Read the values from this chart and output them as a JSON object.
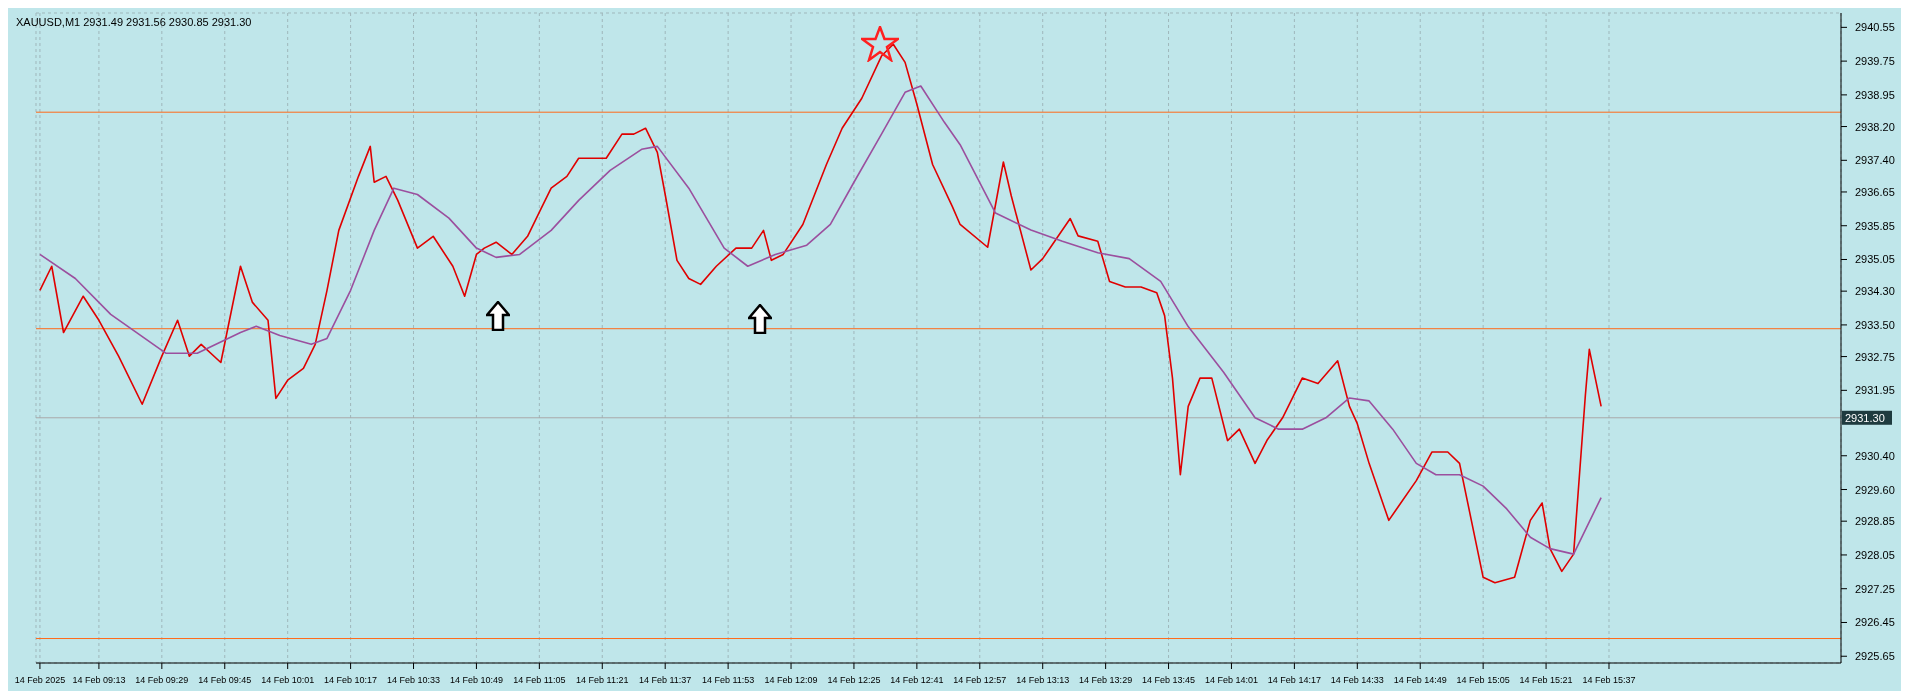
{
  "chart_data": {
    "type": "line",
    "title": "XAUUSD,M1  2931.49 2931.56 2930.85 2931.30",
    "series": [
      {
        "color": "#e00000",
        "x": [
          "2025-02-14T08:58",
          "2025-02-14T09:01",
          "2025-02-14T09:04",
          "2025-02-14T09:09",
          "2025-02-14T09:13",
          "2025-02-14T09:18",
          "2025-02-14T09:24",
          "2025-02-14T09:29",
          "2025-02-14T09:33",
          "2025-02-14T09:36",
          "2025-02-14T09:39",
          "2025-02-14T09:44",
          "2025-02-14T09:49",
          "2025-02-14T09:52",
          "2025-02-14T09:56",
          "2025-02-14T09:58",
          "2025-02-14T10:01",
          "2025-02-14T10:05",
          "2025-02-14T10:08",
          "2025-02-14T10:11",
          "2025-02-14T10:14",
          "2025-02-14T10:19",
          "2025-02-14T10:22",
          "2025-02-14T10:23",
          "2025-02-14T10:26",
          "2025-02-14T10:29",
          "2025-02-14T10:34",
          "2025-02-14T10:38",
          "2025-02-14T10:43",
          "2025-02-14T10:46",
          "2025-02-14T10:49",
          "2025-02-14T10:51",
          "2025-02-14T10:54",
          "2025-02-14T10:58",
          "2025-02-14T11:02",
          "2025-02-14T11:05",
          "2025-02-14T11:08",
          "2025-02-14T11:12",
          "2025-02-14T11:15",
          "2025-02-14T11:22",
          "2025-02-14T11:26",
          "2025-02-14T11:29",
          "2025-02-14T11:32",
          "2025-02-14T11:35",
          "2025-02-14T11:37",
          "2025-02-14T11:40",
          "2025-02-14T11:43",
          "2025-02-14T11:46",
          "2025-02-14T11:50",
          "2025-02-14T11:55",
          "2025-02-14T11:59",
          "2025-02-14T12:02",
          "2025-02-14T12:04",
          "2025-02-14T12:07",
          "2025-02-14T12:12",
          "2025-02-14T12:15",
          "2025-02-14T12:18",
          "2025-02-14T12:22",
          "2025-02-14T12:27",
          "2025-02-14T12:32",
          "2025-02-14T12:35",
          "2025-02-14T12:38",
          "2025-02-14T12:41",
          "2025-02-14T12:45",
          "2025-02-14T12:50",
          "2025-02-14T12:52",
          "2025-02-14T12:59",
          "2025-02-14T13:03",
          "2025-02-14T13:05",
          "2025-02-14T13:10",
          "2025-02-14T13:13",
          "2025-02-14T13:15",
          "2025-02-14T13:20",
          "2025-02-14T13:22",
          "2025-02-14T13:27",
          "2025-02-14T13:30",
          "2025-02-14T13:34",
          "2025-02-14T13:38",
          "2025-02-14T13:42",
          "2025-02-14T13:44",
          "2025-02-14T13:46",
          "2025-02-14T13:48",
          "2025-02-14T13:50",
          "2025-02-14T13:53",
          "2025-02-14T13:56",
          "2025-02-14T14:00",
          "2025-02-14T14:03",
          "2025-02-14T14:07",
          "2025-02-14T14:10",
          "2025-02-14T14:14",
          "2025-02-14T14:19",
          "2025-02-14T14:23",
          "2025-02-14T14:28",
          "2025-02-14T14:31",
          "2025-02-14T14:33",
          "2025-02-14T14:36",
          "2025-02-14T14:41",
          "2025-02-14T14:43",
          "2025-02-14T14:48",
          "2025-02-14T14:52",
          "2025-02-14T14:56",
          "2025-02-14T14:59",
          "2025-02-14T15:02",
          "2025-02-14T15:05",
          "2025-02-14T15:08",
          "2025-02-14T15:13",
          "2025-02-14T15:17",
          "2025-02-14T15:20",
          "2025-02-14T15:22",
          "2025-02-14T15:25",
          "2025-02-14T15:28",
          "2025-02-14T15:31",
          "2025-02-14T15:32",
          "2025-02-14T15:35"
        ],
        "values": [
          2934.32,
          2934.89,
          2933.32,
          2934.18,
          2933.61,
          2932.76,
          2931.62,
          2932.76,
          2933.61,
          2932.76,
          2933.04,
          2932.61,
          2934.89,
          2934.04,
          2933.61,
          2931.76,
          2932.19,
          2932.47,
          2933.04,
          2934.32,
          2935.74,
          2937.02,
          2937.73,
          2936.88,
          2937.02,
          2936.45,
          2935.32,
          2935.6,
          2934.89,
          2934.18,
          2935.17,
          2935.32,
          2935.46,
          2935.17,
          2935.6,
          2936.17,
          2936.74,
          2937.02,
          2937.45,
          2937.45,
          2938.02,
          2938.02,
          2938.16,
          2937.59,
          2936.59,
          2935.03,
          2934.6,
          2934.46,
          2934.89,
          2935.32,
          2935.32,
          2935.74,
          2935.03,
          2935.17,
          2935.88,
          2936.59,
          2937.3,
          2938.16,
          2938.87,
          2939.87,
          2940.15,
          2939.72,
          2938.73,
          2937.3,
          2936.31,
          2935.88,
          2935.34,
          2937.36,
          2936.56,
          2934.8,
          2935.07,
          2935.34,
          2936.02,
          2935.61,
          2935.48,
          2934.53,
          2934.4,
          2934.4,
          2934.26,
          2933.72,
          2932.24,
          2929.95,
          2931.57,
          2932.24,
          2932.24,
          2930.76,
          2931.03,
          2930.22,
          2930.76,
          2931.3,
          2932.24,
          2932.11,
          2932.65,
          2931.57,
          2931.16,
          2930.22,
          2928.87,
          2929.14,
          2929.81,
          2930.49,
          2930.49,
          2930.22,
          2928.87,
          2927.52,
          2927.39,
          2927.52,
          2928.87,
          2929.28,
          2928.2,
          2927.66,
          2928.07,
          2931.84,
          2932.92,
          2931.57
        ]
      },
      {
        "color": "#9b4f9e",
        "x": [
          "2025-02-14T08:58",
          "2025-02-14T09:07",
          "2025-02-14T09:16",
          "2025-02-14T09:30",
          "2025-02-14T09:38",
          "2025-02-14T09:49",
          "2025-02-14T09:53",
          "2025-02-14T09:59",
          "2025-02-14T10:07",
          "2025-02-14T10:11",
          "2025-02-14T10:17",
          "2025-02-14T10:23",
          "2025-02-14T10:28",
          "2025-02-14T10:34",
          "2025-02-14T10:42",
          "2025-02-14T10:49",
          "2025-02-14T10:54",
          "2025-02-14T11:00",
          "2025-02-14T11:08",
          "2025-02-14T11:15",
          "2025-02-14T11:23",
          "2025-02-14T11:31",
          "2025-02-14T11:35",
          "2025-02-14T11:43",
          "2025-02-14T11:52",
          "2025-02-14T11:58",
          "2025-02-14T12:05",
          "2025-02-14T12:13",
          "2025-02-14T12:19",
          "2025-02-14T12:25",
          "2025-02-14T12:32",
          "2025-02-14T12:38",
          "2025-02-14T12:42",
          "2025-02-14T12:48",
          "2025-02-14T12:52",
          "2025-02-14T13:01",
          "2025-02-14T13:10",
          "2025-02-14T13:18",
          "2025-02-14T13:27",
          "2025-02-14T13:35",
          "2025-02-14T13:43",
          "2025-02-14T13:50",
          "2025-02-14T13:59",
          "2025-02-14T14:07",
          "2025-02-14T14:13",
          "2025-02-14T14:19",
          "2025-02-14T14:25",
          "2025-02-14T14:31",
          "2025-02-14T14:36",
          "2025-02-14T14:42",
          "2025-02-14T14:48",
          "2025-02-14T14:53",
          "2025-02-14T14:59",
          "2025-02-14T15:05",
          "2025-02-14T15:11",
          "2025-02-14T15:17",
          "2025-02-14T15:22",
          "2025-02-14T15:28",
          "2025-02-14T15:35"
        ],
        "values": [
          2935.17,
          2934.6,
          2933.75,
          2932.83,
          2932.83,
          2933.32,
          2933.47,
          2933.25,
          2933.04,
          2933.18,
          2934.32,
          2935.74,
          2936.74,
          2936.59,
          2936.03,
          2935.32,
          2935.1,
          2935.17,
          2935.74,
          2936.45,
          2937.16,
          2937.66,
          2937.73,
          2936.74,
          2935.32,
          2934.89,
          2935.17,
          2935.39,
          2935.88,
          2936.88,
          2938.02,
          2939.01,
          2939.16,
          2938.3,
          2937.77,
          2936.15,
          2935.75,
          2935.48,
          2935.21,
          2935.07,
          2934.53,
          2933.46,
          2932.38,
          2931.3,
          2931.03,
          2931.03,
          2931.3,
          2931.77,
          2931.7,
          2931.03,
          2930.22,
          2929.95,
          2929.95,
          2929.68,
          2929.14,
          2928.47,
          2928.2,
          2928.07,
          2929.41
        ]
      }
    ],
    "xlim": [
      "2025-02-14T08:57",
      "2025-02-14T16:36"
    ],
    "xticks": [
      {
        "value": "2025-02-14T08:58",
        "label": "14 Feb 2025"
      },
      {
        "value": "2025-02-14T09:13",
        "label": "14 Feb 09:13"
      },
      {
        "value": "2025-02-14T09:29",
        "label": "14 Feb 09:29"
      },
      {
        "value": "2025-02-14T09:45",
        "label": "14 Feb 09:45"
      },
      {
        "value": "2025-02-14T10:01",
        "label": "14 Feb 10:01"
      },
      {
        "value": "2025-02-14T10:17",
        "label": "14 Feb 10:17"
      },
      {
        "value": "2025-02-14T10:33",
        "label": "14 Feb 10:33"
      },
      {
        "value": "2025-02-14T10:49",
        "label": "14 Feb 10:49"
      },
      {
        "value": "2025-02-14T11:05",
        "label": "14 Feb 11:05"
      },
      {
        "value": "2025-02-14T11:21",
        "label": "14 Feb 11:21"
      },
      {
        "value": "2025-02-14T11:37",
        "label": "14 Feb 11:37"
      },
      {
        "value": "2025-02-14T11:53",
        "label": "14 Feb 11:53"
      },
      {
        "value": "2025-02-14T12:09",
        "label": "14 Feb 12:09"
      },
      {
        "value": "2025-02-14T12:25",
        "label": "14 Feb 12:25"
      },
      {
        "value": "2025-02-14T12:41",
        "label": "14 Feb 12:41"
      },
      {
        "value": "2025-02-14T12:57",
        "label": "14 Feb 12:57"
      },
      {
        "value": "2025-02-14T13:13",
        "label": "14 Feb 13:13"
      },
      {
        "value": "2025-02-14T13:29",
        "label": "14 Feb 13:29"
      },
      {
        "value": "2025-02-14T13:45",
        "label": "14 Feb 13:45"
      },
      {
        "value": "2025-02-14T14:01",
        "label": "14 Feb 14:01"
      },
      {
        "value": "2025-02-14T14:17",
        "label": "14 Feb 14:17"
      },
      {
        "value": "2025-02-14T14:33",
        "label": "14 Feb 14:33"
      },
      {
        "value": "2025-02-14T14:49",
        "label": "14 Feb 14:49"
      },
      {
        "value": "2025-02-14T15:05",
        "label": "14 Feb 15:05"
      },
      {
        "value": "2025-02-14T15:21",
        "label": "14 Feb 15:21"
      },
      {
        "value": "2025-02-14T15:37",
        "label": "14 Feb 15:37"
      }
    ],
    "ylim": [
      2925.49,
      2940.89
    ],
    "yticks": [
      2940.55,
      2939.75,
      2938.95,
      {
        "value": 2938.2,
        "label": "2938.20"
      },
      {
        "value": 2937.4,
        "label": "2937.40"
      },
      2936.65,
      2935.85,
      2935.05,
      {
        "value": 2934.3,
        "label": "2934.30"
      },
      {
        "value": 2933.5,
        "label": "2933.50"
      },
      2932.75,
      2931.95,
      {
        "value": 2930.4,
        "label": "2930.40"
      },
      {
        "value": 2929.6,
        "label": "2929.60"
      },
      2928.85,
      2928.05,
      2927.25,
      2926.45,
      2925.65
    ],
    "ref_lines": [
      {
        "axis": "y",
        "value": 2938.54,
        "color": "#ff6a1a"
      },
      {
        "axis": "y",
        "value": 2933.41,
        "color": "#ff6a1a"
      },
      {
        "axis": "y",
        "value": 2926.07,
        "color": "#ff6a1a"
      },
      {
        "axis": "y",
        "value": 2931.3,
        "label": "2931.30",
        "color": "#a9a9a9"
      }
    ],
    "grid": true,
    "marker": "none",
    "line_style": "solid"
  }
}
